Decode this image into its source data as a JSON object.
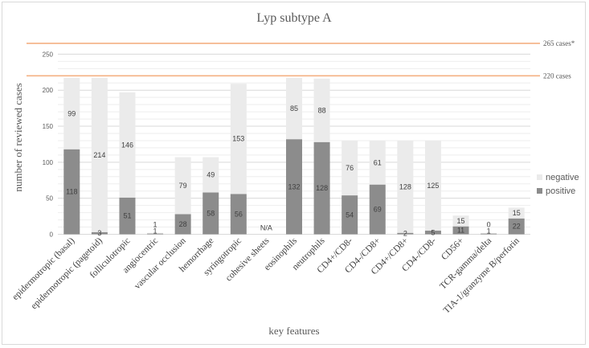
{
  "chart_data": {
    "type": "bar",
    "stacked": true,
    "title": "Lyp subtype A",
    "xlabel": "key features",
    "ylabel": "number of reviewed cases",
    "ylim": [
      0,
      250
    ],
    "yticks": [
      0,
      50,
      100,
      150,
      200,
      250
    ],
    "grid": true,
    "legend_position": "right",
    "categories": [
      "epidermotropic (basal)",
      "epidermotropic (pagetoid)",
      "folliculotropic",
      "angiocentric",
      "vascular occlusion",
      "hemorrhage",
      "syringotropic",
      "cohesive sheets",
      "eosinophils",
      "neutrophils",
      "CD4+/CD8-",
      "CD4-/CD8+",
      "CD4+/CD8+",
      "CD4-/CD8-",
      "CD56+",
      "TCR-gamma/delta",
      "TIA-1/granzyme B/perforin"
    ],
    "series": [
      {
        "name": "positive",
        "color": "#8c8c8c",
        "values": [
          118,
          3,
          51,
          1,
          28,
          58,
          56,
          null,
          132,
          128,
          54,
          69,
          2,
          5,
          11,
          1,
          22
        ]
      },
      {
        "name": "negative",
        "color": "#ebebeb",
        "values": [
          99,
          214,
          146,
          1,
          79,
          49,
          153,
          null,
          85,
          88,
          76,
          61,
          128,
          125,
          15,
          0,
          15
        ]
      }
    ],
    "annotations": [
      {
        "category": "cohesive sheets",
        "text": "N/A"
      }
    ],
    "reference_lines": [
      {
        "value": 265,
        "label": "265 cases*",
        "color": "#f4b183"
      },
      {
        "value": 220,
        "label": "220 cases",
        "color": "#f4b183"
      }
    ]
  }
}
